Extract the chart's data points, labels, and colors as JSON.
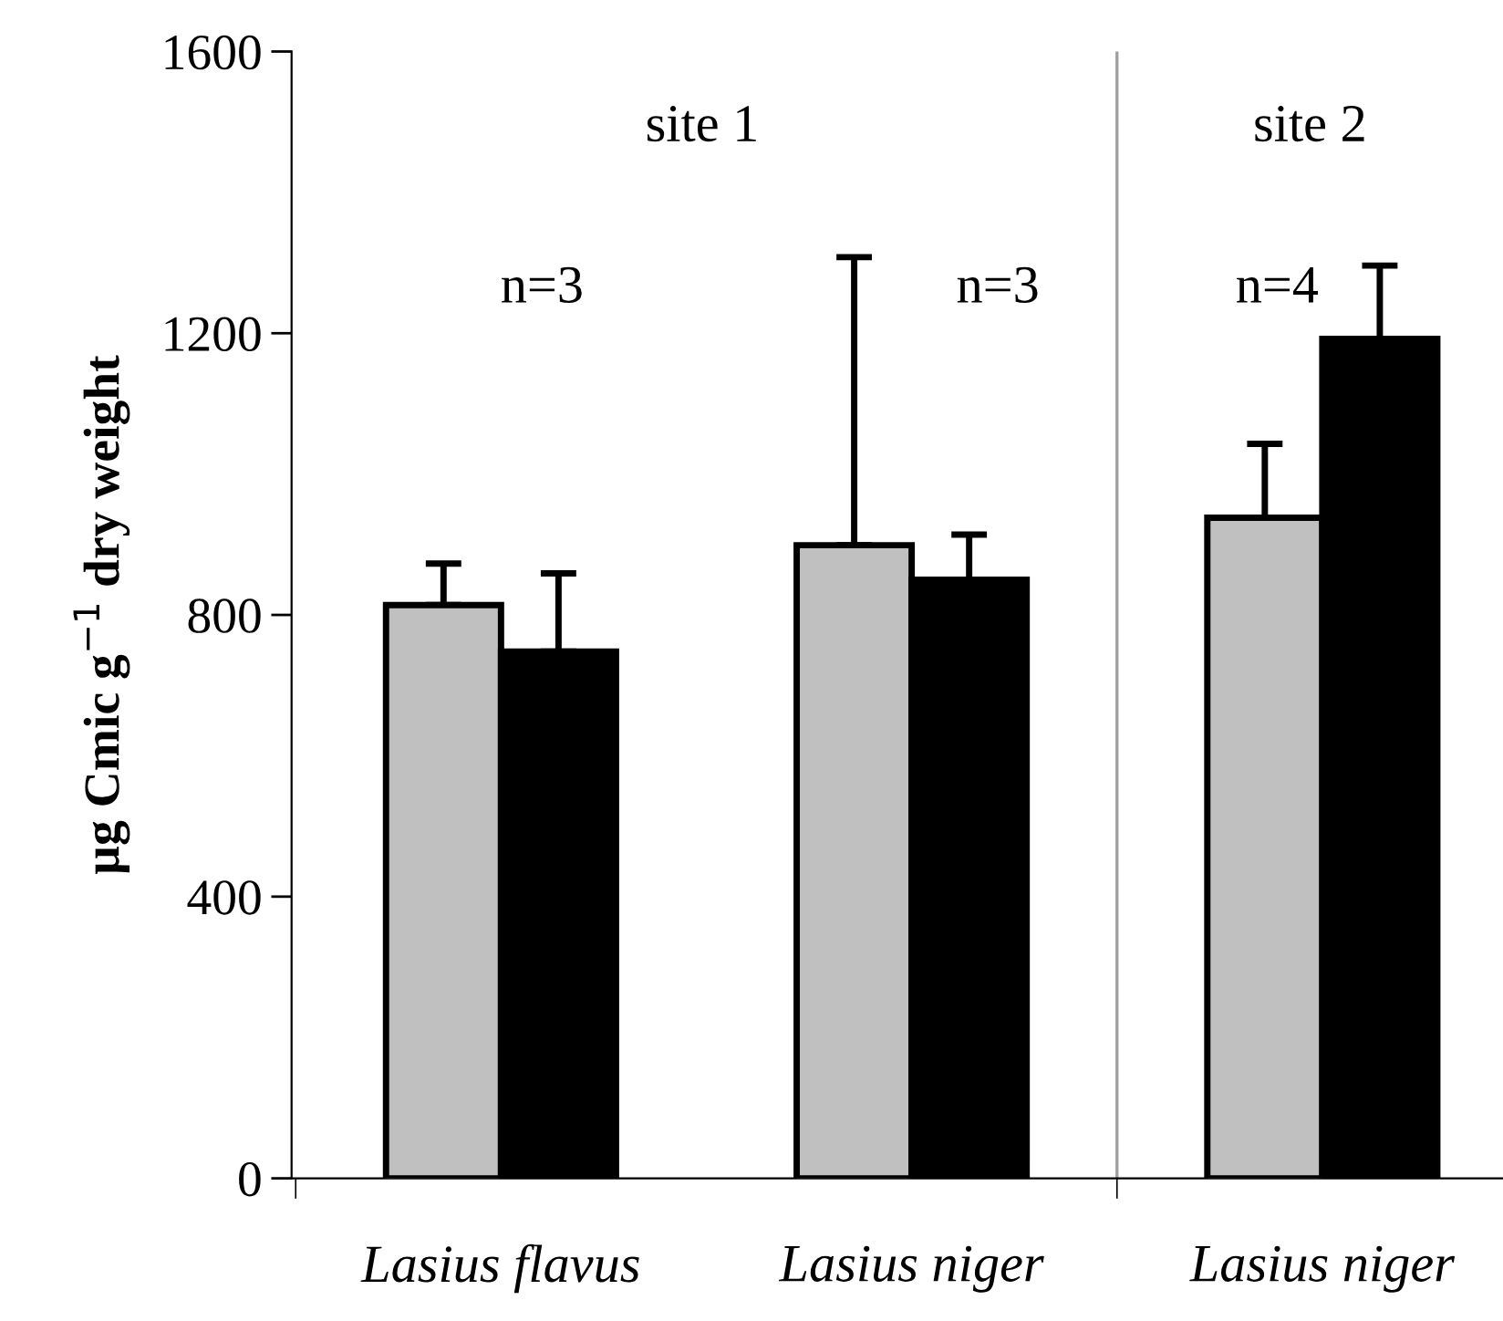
{
  "chart_data": {
    "type": "bar",
    "ylabel": "µg Cmic g$^{−1}$ dry weight",
    "categories": [
      "Lasius flavus",
      "Lasius niger",
      "Lasius niger"
    ],
    "series": [
      {
        "color": "#c0c0c0",
        "values": [
          814,
          899,
          938
        ],
        "errors": [
          [
            814,
            873
          ],
          [
            899,
            1308
          ],
          [
            938,
            1043
          ]
        ]
      },
      {
        "color": "#000000",
        "values": [
          748,
          850,
          1192
        ],
        "errors": [
          [
            748,
            859
          ],
          [
            850,
            914
          ],
          [
            1192,
            1296
          ]
        ]
      }
    ],
    "ylim": [
      0,
      1600
    ],
    "yticks": [
      0,
      400,
      800,
      1200,
      1600
    ],
    "grid": false,
    "legend": false,
    "annotations": [
      "site 1",
      "site 2",
      "n=3",
      "n=3",
      "n=4"
    ]
  }
}
